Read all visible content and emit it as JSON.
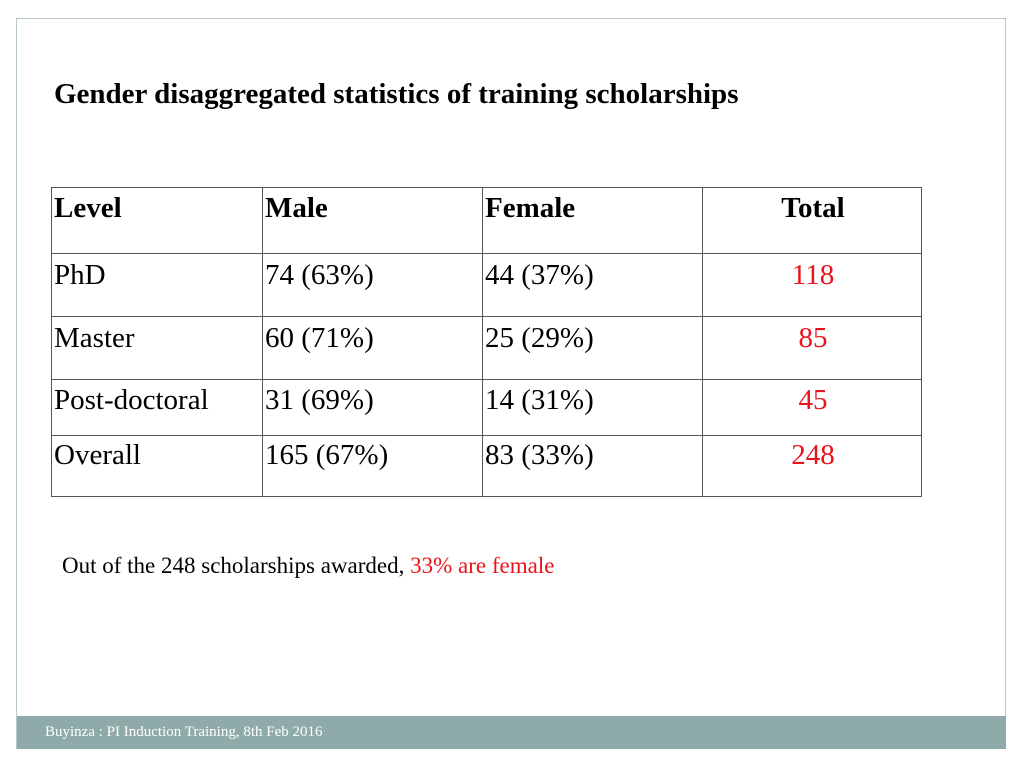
{
  "slide": {
    "title": "Gender disaggregated statistics of training scholarships",
    "table": {
      "headers": [
        "Level",
        "Male",
        "Female",
        "Total"
      ],
      "rows": [
        {
          "level": "PhD",
          "male": "74 (63%)",
          "female": "44 (37%)",
          "total": "118"
        },
        {
          "level": "Master",
          "male": "60 (71%)",
          "female": "25 (29%)",
          "total": "85"
        },
        {
          "level": "Post-doctoral",
          "male": "31 (69%)",
          "female": "14 (31%)",
          "total": "45"
        },
        {
          "level": "Overall",
          "male": "165 (67%)",
          "female": "83 (33%)",
          "total": "248"
        }
      ]
    },
    "note": {
      "prefix": "Out of the 248 scholarships awarded, ",
      "highlight": "33% are female"
    },
    "footer": "Buyinza :  PI Induction Training, 8th Feb 2016",
    "colors": {
      "accent_red": "#e8141b",
      "footer_bar": "#8eaaa9"
    }
  }
}
